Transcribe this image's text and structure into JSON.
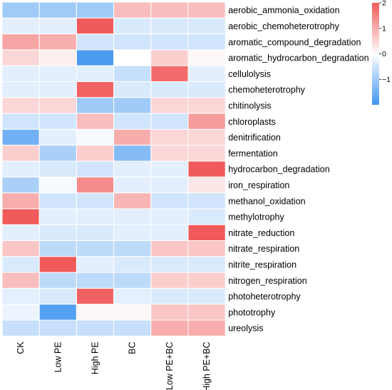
{
  "chart_data": {
    "type": "heatmap",
    "columns": [
      "CK",
      "Low PE",
      "High PE",
      "BC",
      "Low PE+BC",
      "High PE+BC"
    ],
    "rows": [
      "aerobic_ammonia_oxidation",
      "aerobic_chemoheterotrophy",
      "aromatic_compound_degradation",
      "aromatic_hydrocarbon_degradation",
      "cellulolysis",
      "chemoheterotrophy",
      "chitinolysis",
      "chloroplasts",
      "denitrification",
      "fermentation",
      "hydrocarbon_degradation",
      "iron_respiration",
      "methanol_oxidation",
      "methylotrophy",
      "nitrate_reduction",
      "nitrate_respiration",
      "nitrite_respiration",
      "nitrogen_respiration",
      "photoheterotrophy",
      "phototrophy",
      "ureolysis"
    ],
    "values": [
      [
        -1.0,
        -1.0,
        -1.0,
        0.8,
        0.8,
        0.8
      ],
      [
        -0.3,
        -0.3,
        2.0,
        -0.4,
        -0.4,
        -0.4
      ],
      [
        1.1,
        1.0,
        -0.5,
        -0.5,
        -0.5,
        -0.5
      ],
      [
        0.5,
        0.2,
        -1.9,
        0.0,
        0.6,
        0.1
      ],
      [
        -0.3,
        -0.3,
        -0.3,
        -0.6,
        1.8,
        -0.3
      ],
      [
        -0.3,
        -0.3,
        1.9,
        -0.4,
        -0.4,
        -0.4
      ],
      [
        0.5,
        0.5,
        -1.0,
        -1.0,
        0.5,
        0.5
      ],
      [
        -0.5,
        -0.5,
        0.8,
        -0.5,
        -0.5,
        1.2
      ],
      [
        -1.5,
        -0.3,
        -0.1,
        1.0,
        0.5,
        0.5
      ],
      [
        0.6,
        -0.9,
        0.6,
        -1.3,
        0.5,
        0.5
      ],
      [
        -0.3,
        -0.4,
        -0.5,
        -0.3,
        -0.3,
        2.0
      ],
      [
        -0.9,
        -0.1,
        1.4,
        -0.3,
        -0.3,
        0.3
      ],
      [
        1.0,
        -0.5,
        -0.5,
        0.9,
        -0.5,
        -0.5
      ],
      [
        2.0,
        -0.3,
        -0.3,
        -0.3,
        -0.3,
        -0.4
      ],
      [
        -0.3,
        -0.4,
        -0.4,
        -0.3,
        -0.3,
        2.0
      ],
      [
        0.7,
        -0.7,
        -0.7,
        -0.7,
        0.7,
        0.7
      ],
      [
        -0.4,
        2.0,
        -0.3,
        -0.4,
        -0.4,
        -0.4
      ],
      [
        0.8,
        -0.7,
        -0.7,
        -0.7,
        0.6,
        0.6
      ],
      [
        -0.3,
        -0.4,
        1.9,
        -0.3,
        -0.4,
        -0.4
      ],
      [
        -0.2,
        -1.8,
        0.1,
        0.1,
        0.7,
        0.7
      ],
      [
        -0.6,
        -0.6,
        -0.6,
        -0.6,
        1.0,
        1.0
      ]
    ],
    "colorbar": {
      "ticks": [
        2,
        1,
        0,
        -1
      ],
      "tick_labels": [
        "2",
        "1",
        "0",
        "−1"
      ],
      "range": [
        -2,
        2
      ],
      "low_color": "#4196F0",
      "mid_color": "#FFFFFF",
      "high_color": "#F05A5A"
    },
    "grid": "white lines between cells",
    "legend_position": "top-right"
  }
}
